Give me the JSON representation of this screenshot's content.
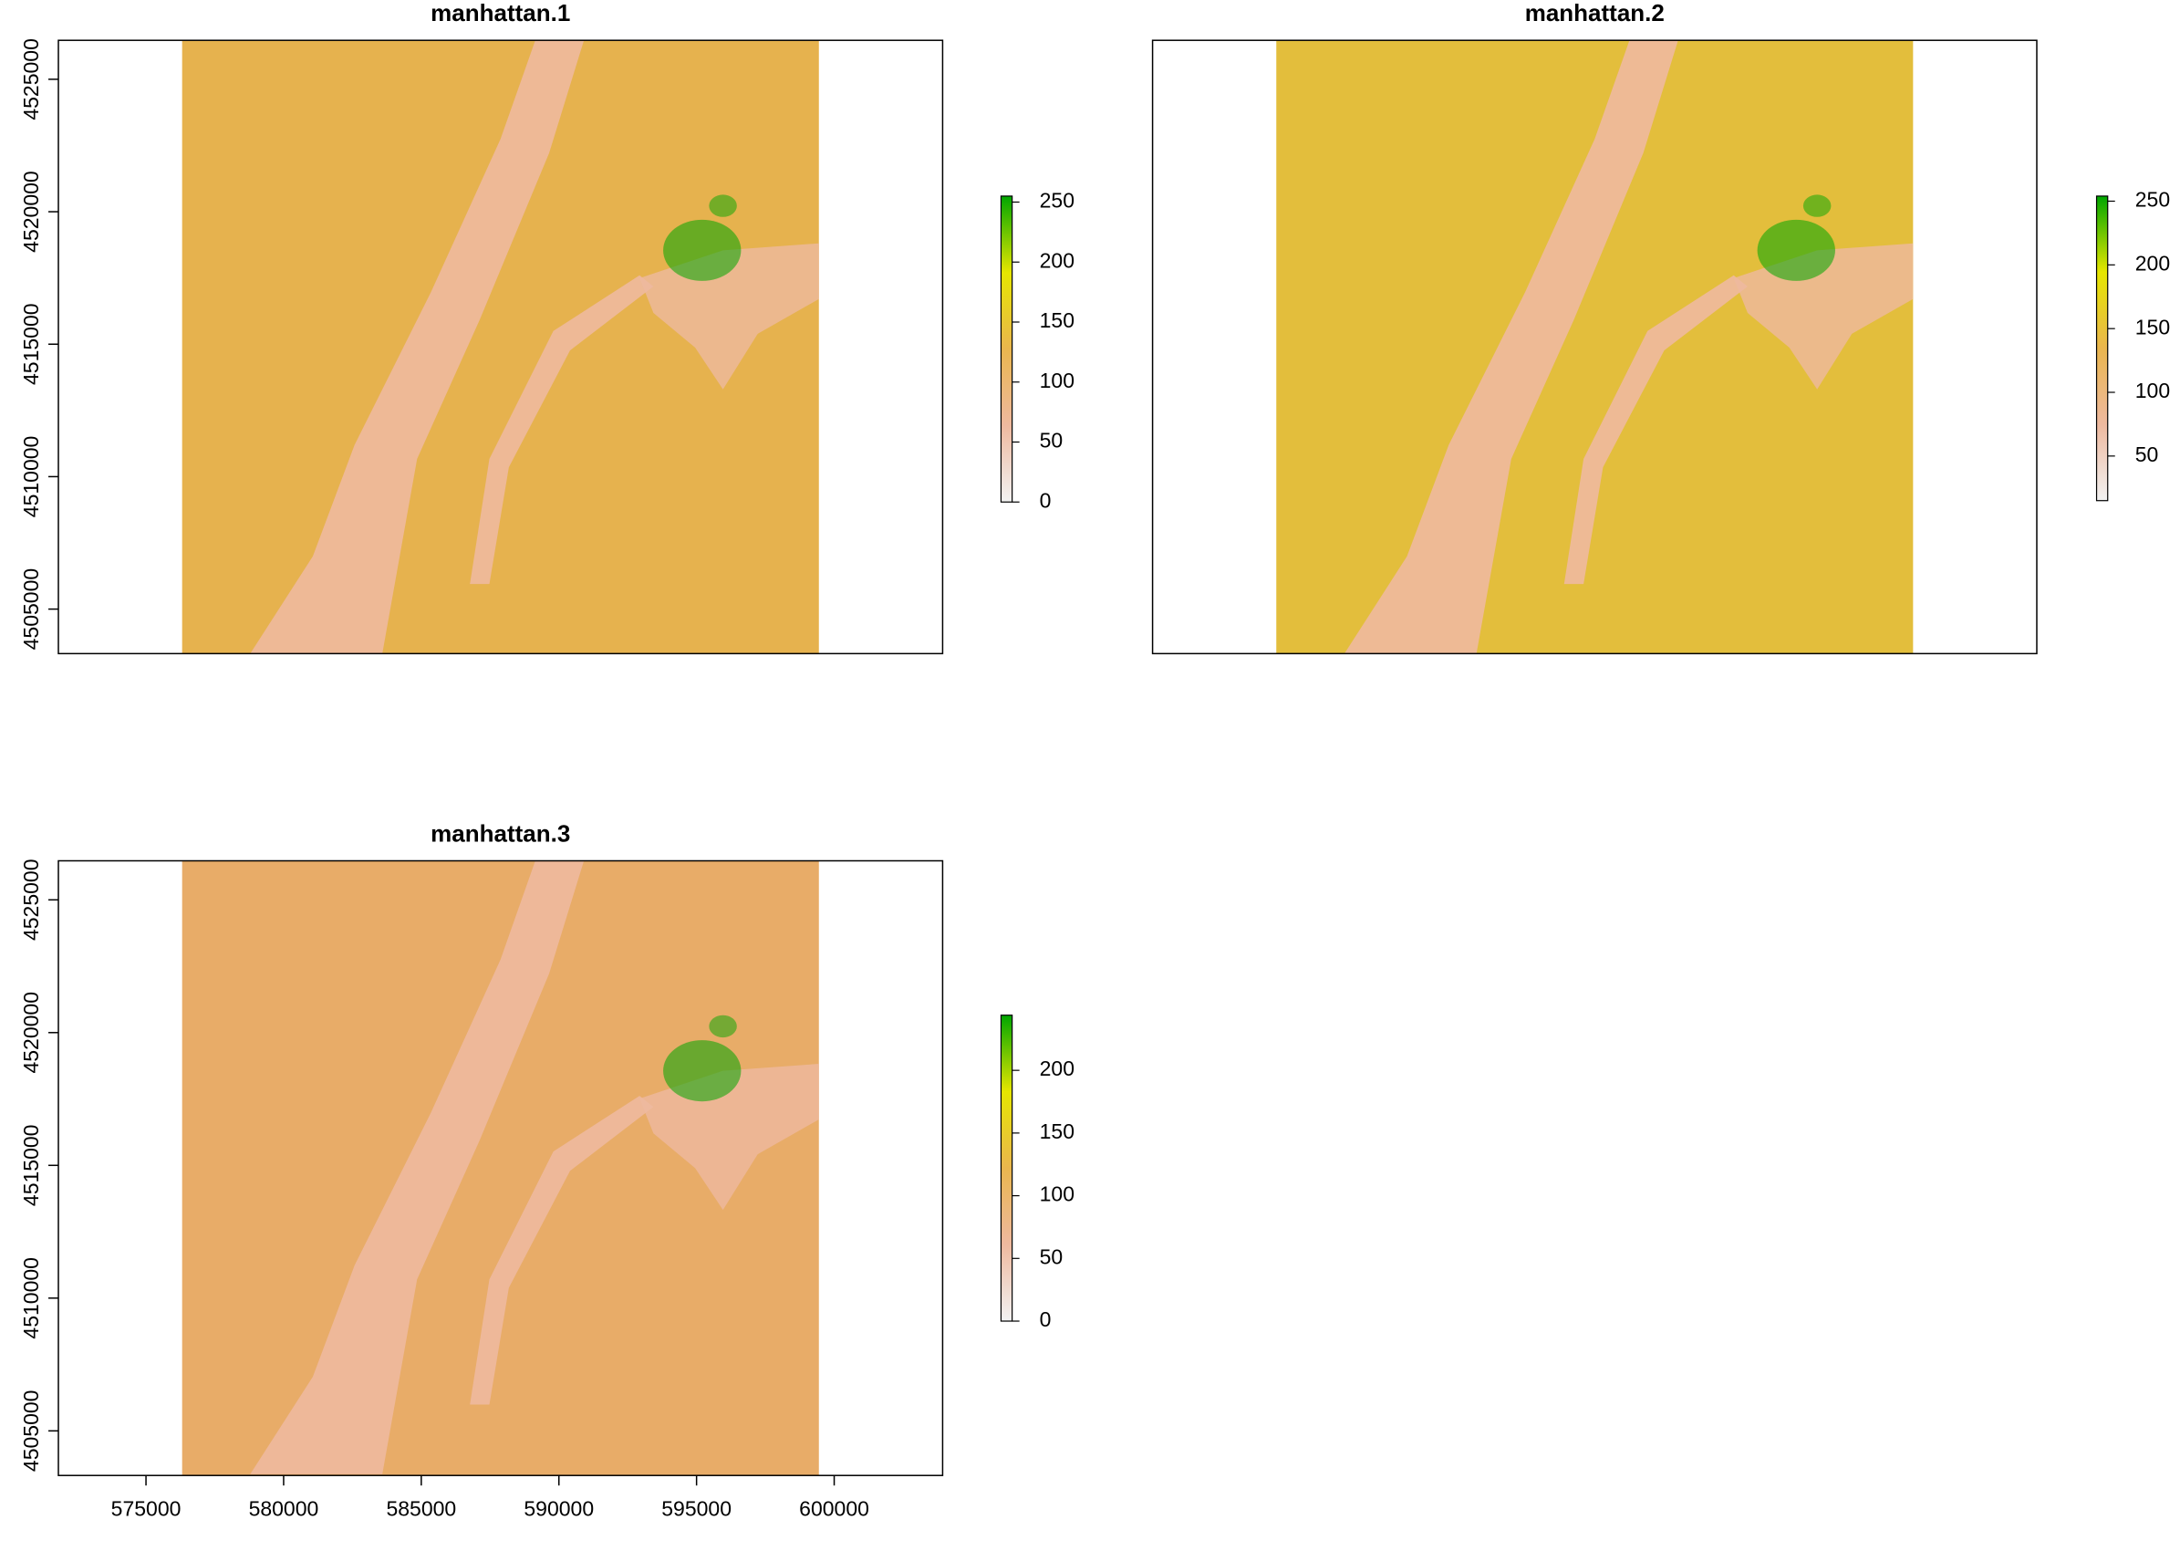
{
  "chart_data": [
    {
      "type": "raster",
      "title": "manhattan.1",
      "xlim": [
        571818,
        603939
      ],
      "ylim": [
        4503320,
        4526470
      ],
      "raster_xlim": [
        576313,
        599444
      ],
      "yticks": [
        4505000,
        4510000,
        4515000,
        4520000,
        4525000
      ],
      "color": "#E6B24E",
      "palette": [
        "#F2F2F2",
        "#EEB99F",
        "#EAB64E",
        "#E6E600",
        "#00A600"
      ],
      "legend": {
        "lim": [
          0,
          255
        ],
        "ticks": [
          0,
          50,
          100,
          150,
          200,
          250
        ]
      }
    },
    {
      "type": "raster",
      "title": "manhattan.2",
      "xlim": [
        571818,
        603939
      ],
      "ylim": [
        4503320,
        4526470
      ],
      "raster_xlim": [
        576313,
        599444
      ],
      "color": "#E3BE3C",
      "palette": [
        "#F2F2F2",
        "#EEB99F",
        "#EAB64E",
        "#E6E600",
        "#00A600"
      ],
      "legend": {
        "lim": [
          15,
          254
        ],
        "ticks": [
          50,
          100,
          150,
          200,
          250
        ]
      }
    },
    {
      "type": "raster",
      "title": "manhattan.3",
      "xlim": [
        571818,
        603939
      ],
      "ylim": [
        4503320,
        4526470
      ],
      "raster_xlim": [
        576313,
        599444
      ],
      "xticks": [
        575000,
        580000,
        585000,
        590000,
        595000,
        600000
      ],
      "yticks": [
        4505000,
        4510000,
        4515000,
        4520000,
        4525000
      ],
      "color": "#E8AC68",
      "palette": [
        "#F2F2F2",
        "#EEB99F",
        "#EAB64E",
        "#E6E600",
        "#00A600"
      ],
      "legend": {
        "lim": [
          0,
          244
        ],
        "ticks": [
          0,
          50,
          100,
          150,
          200
        ]
      }
    }
  ]
}
